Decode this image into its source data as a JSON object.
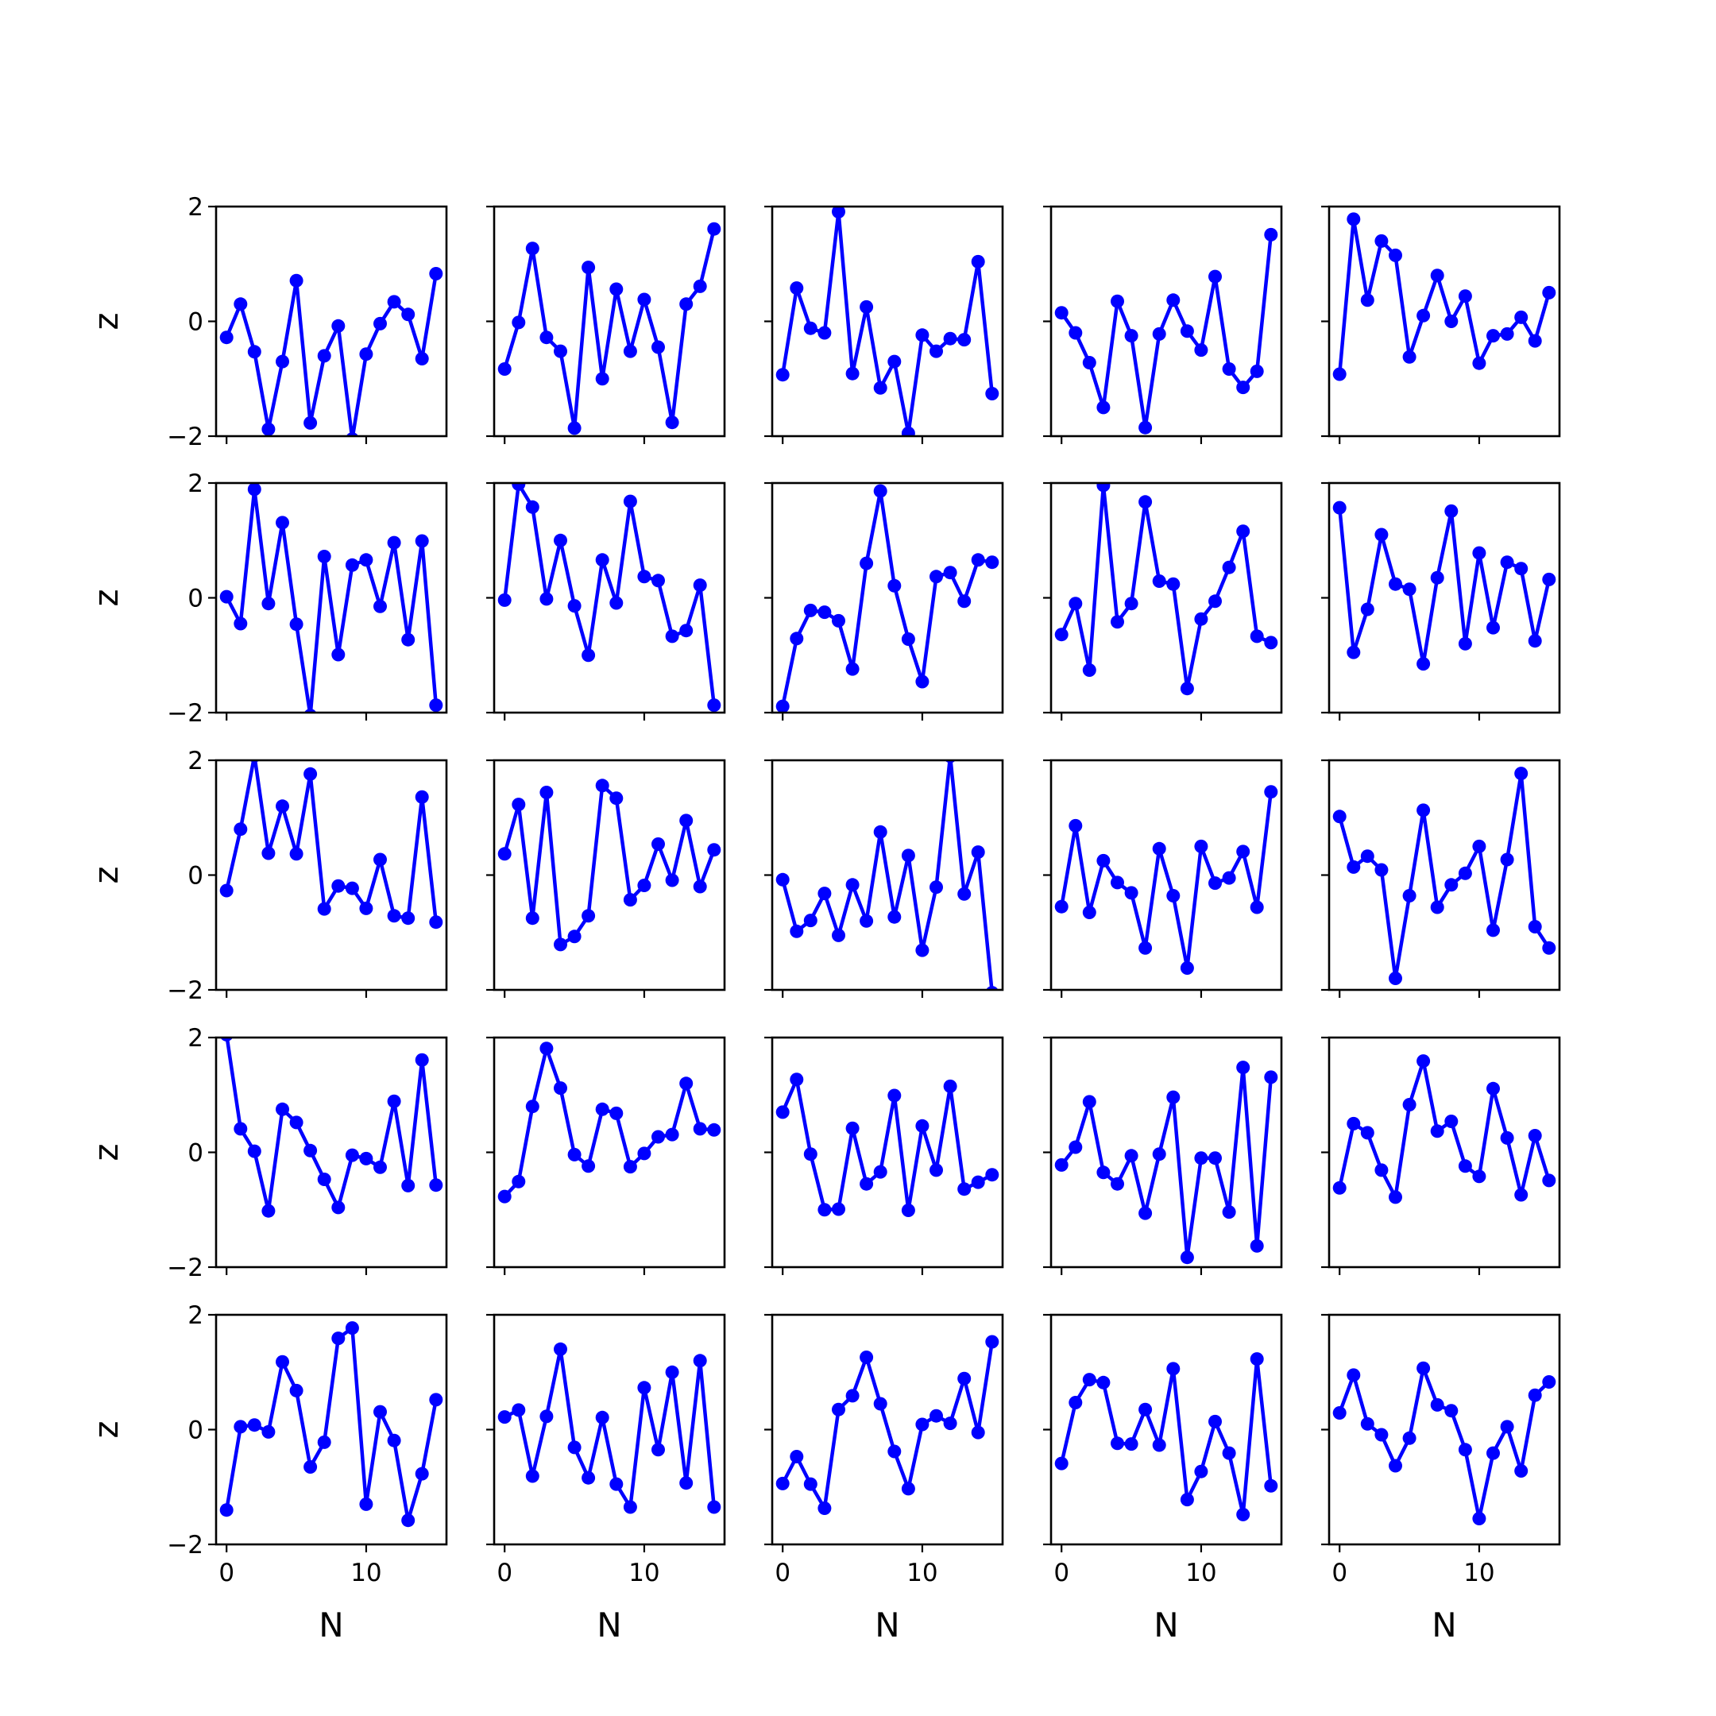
{
  "figure": {
    "xlabel": "N",
    "ylabel": "z",
    "color": "#0000ff"
  },
  "chart_data": {
    "type": "line",
    "grid": false,
    "rows": 5,
    "cols": 5,
    "xlabel": "N",
    "ylabel": "z",
    "xlim": [
      -0.75,
      15.75
    ],
    "ylim": [
      -2,
      2
    ],
    "x": [
      0,
      1,
      2,
      3,
      4,
      5,
      6,
      7,
      8,
      9,
      10,
      11,
      12,
      13,
      14,
      15
    ],
    "xticks": [
      0,
      10
    ],
    "yticks": [
      -2,
      0,
      2
    ],
    "panels": [
      {
        "row": 0,
        "col": 0,
        "values": [
          -0.28,
          0.3,
          -0.53,
          -1.88,
          -0.7,
          0.71,
          -1.77,
          -0.6,
          -0.08,
          -2.05,
          -0.57,
          -0.04,
          0.34,
          0.12,
          -0.65,
          0.83
        ]
      },
      {
        "row": 0,
        "col": 1,
        "values": [
          -0.83,
          -0.02,
          1.27,
          -0.28,
          -0.52,
          -1.86,
          0.94,
          -1.0,
          0.56,
          -0.52,
          0.38,
          -0.45,
          -1.76,
          0.3,
          0.61,
          1.61
        ]
      },
      {
        "row": 0,
        "col": 2,
        "values": [
          -0.93,
          0.58,
          -0.12,
          -0.2,
          1.91,
          -0.91,
          0.25,
          -1.16,
          -0.7,
          -1.95,
          -0.24,
          -0.52,
          -0.3,
          -0.32,
          1.04,
          -1.26
        ]
      },
      {
        "row": 0,
        "col": 3,
        "values": [
          0.15,
          -0.2,
          -0.72,
          -1.5,
          0.35,
          -0.25,
          -1.85,
          -0.22,
          0.37,
          -0.17,
          -0.5,
          0.78,
          -0.83,
          -1.15,
          -0.87,
          1.51
        ]
      },
      {
        "row": 0,
        "col": 4,
        "values": [
          -0.92,
          1.78,
          0.37,
          1.4,
          1.15,
          -0.62,
          0.1,
          0.8,
          0.0,
          0.44,
          -0.73,
          -0.25,
          -0.22,
          0.07,
          -0.34,
          0.5
        ]
      },
      {
        "row": 1,
        "col": 0,
        "values": [
          0.02,
          -0.45,
          1.89,
          -0.1,
          1.31,
          -0.46,
          -2.05,
          0.72,
          -0.99,
          0.57,
          0.66,
          -0.15,
          0.96,
          -0.73,
          0.99,
          -1.87
        ]
      },
      {
        "row": 1,
        "col": 1,
        "values": [
          -0.04,
          1.98,
          1.58,
          -0.02,
          1.0,
          -0.14,
          -1.0,
          0.66,
          -0.09,
          1.68,
          0.37,
          0.3,
          -0.67,
          -0.57,
          0.22,
          -1.87
        ]
      },
      {
        "row": 1,
        "col": 2,
        "values": [
          -1.89,
          -0.71,
          -0.22,
          -0.25,
          -0.4,
          -1.24,
          0.6,
          1.86,
          0.21,
          -0.72,
          -1.46,
          0.37,
          0.44,
          -0.06,
          0.66,
          0.62
        ]
      },
      {
        "row": 1,
        "col": 3,
        "values": [
          -0.64,
          -0.1,
          -1.26,
          1.96,
          -0.42,
          -0.1,
          1.67,
          0.29,
          0.24,
          -1.58,
          -0.37,
          -0.06,
          0.53,
          1.16,
          -0.67,
          -0.78
        ]
      },
      {
        "row": 1,
        "col": 4,
        "values": [
          1.57,
          -0.95,
          -0.2,
          1.1,
          0.24,
          0.15,
          -1.15,
          0.35,
          1.51,
          -0.8,
          0.78,
          -0.52,
          0.62,
          0.51,
          -0.75,
          0.32
        ]
      },
      {
        "row": 2,
        "col": 0,
        "values": [
          -0.27,
          0.8,
          2.08,
          0.38,
          1.2,
          0.37,
          1.76,
          -0.59,
          -0.19,
          -0.23,
          -0.58,
          0.27,
          -0.71,
          -0.75,
          1.36,
          -0.82
        ]
      },
      {
        "row": 2,
        "col": 1,
        "values": [
          0.37,
          1.23,
          -0.75,
          1.44,
          -1.21,
          -1.07,
          -0.71,
          1.56,
          1.34,
          -0.43,
          -0.18,
          0.54,
          -0.09,
          0.95,
          -0.2,
          0.44
        ]
      },
      {
        "row": 2,
        "col": 2,
        "values": [
          -0.08,
          -0.98,
          -0.79,
          -0.32,
          -1.05,
          -0.17,
          -0.8,
          0.75,
          -0.73,
          0.34,
          -1.31,
          -0.21,
          2.07,
          -0.33,
          0.4,
          -2.05
        ]
      },
      {
        "row": 2,
        "col": 3,
        "values": [
          -0.55,
          0.86,
          -0.65,
          0.25,
          -0.13,
          -0.31,
          -1.27,
          0.46,
          -0.36,
          -1.62,
          0.5,
          -0.14,
          -0.05,
          0.41,
          -0.56,
          1.45
        ]
      },
      {
        "row": 2,
        "col": 4,
        "values": [
          1.02,
          0.14,
          0.33,
          0.09,
          -1.8,
          -0.36,
          1.13,
          -0.56,
          -0.17,
          0.03,
          0.5,
          -0.96,
          0.27,
          1.77,
          -0.9,
          -1.27
        ]
      },
      {
        "row": 3,
        "col": 0,
        "values": [
          2.05,
          0.41,
          0.02,
          -1.02,
          0.75,
          0.52,
          0.03,
          -0.47,
          -0.96,
          -0.05,
          -0.11,
          -0.26,
          0.89,
          -0.58,
          1.61,
          -0.57
        ]
      },
      {
        "row": 3,
        "col": 1,
        "values": [
          -0.77,
          -0.51,
          0.8,
          1.81,
          1.12,
          -0.04,
          -0.24,
          0.75,
          0.68,
          -0.25,
          -0.02,
          0.27,
          0.31,
          1.2,
          0.41,
          0.39
        ]
      },
      {
        "row": 3,
        "col": 2,
        "values": [
          0.7,
          1.27,
          -0.03,
          -1.0,
          -0.99,
          0.42,
          -0.55,
          -0.34,
          0.99,
          -1.01,
          0.46,
          -0.31,
          1.15,
          -0.64,
          -0.52,
          -0.39
        ]
      },
      {
        "row": 3,
        "col": 3,
        "values": [
          -0.22,
          0.09,
          0.88,
          -0.35,
          -0.55,
          -0.06,
          -1.06,
          -0.03,
          0.96,
          -1.83,
          -0.1,
          -0.1,
          -1.04,
          1.48,
          -1.63,
          1.31
        ]
      },
      {
        "row": 3,
        "col": 4,
        "values": [
          -0.62,
          0.5,
          0.34,
          -0.31,
          -0.78,
          0.83,
          1.59,
          0.37,
          0.54,
          -0.24,
          -0.42,
          1.11,
          0.25,
          -0.74,
          0.29,
          -0.49
        ]
      },
      {
        "row": 4,
        "col": 0,
        "values": [
          -1.4,
          0.05,
          0.08,
          -0.04,
          1.18,
          0.68,
          -0.65,
          -0.22,
          1.59,
          1.77,
          -1.3,
          0.31,
          -0.19,
          -1.58,
          -0.77,
          0.52
        ]
      },
      {
        "row": 4,
        "col": 1,
        "values": [
          0.22,
          0.34,
          -0.81,
          0.23,
          1.4,
          -0.31,
          -0.84,
          0.21,
          -0.95,
          -1.35,
          0.73,
          -0.35,
          1.0,
          -0.93,
          1.2,
          -1.35
        ]
      },
      {
        "row": 4,
        "col": 2,
        "values": [
          -0.94,
          -0.47,
          -0.95,
          -1.37,
          0.35,
          0.59,
          1.26,
          0.45,
          -0.38,
          -1.03,
          0.09,
          0.24,
          0.11,
          0.89,
          -0.05,
          1.53
        ]
      },
      {
        "row": 4,
        "col": 3,
        "values": [
          -0.59,
          0.47,
          0.87,
          0.82,
          -0.24,
          -0.25,
          0.35,
          -0.27,
          1.06,
          -1.22,
          -0.73,
          0.14,
          -0.41,
          -1.48,
          1.23,
          -0.98
        ]
      },
      {
        "row": 4,
        "col": 4,
        "values": [
          0.29,
          0.95,
          0.1,
          -0.09,
          -0.63,
          -0.15,
          1.07,
          0.43,
          0.33,
          -0.35,
          -1.55,
          -0.41,
          0.05,
          -0.72,
          0.6,
          0.83
        ]
      }
    ]
  }
}
